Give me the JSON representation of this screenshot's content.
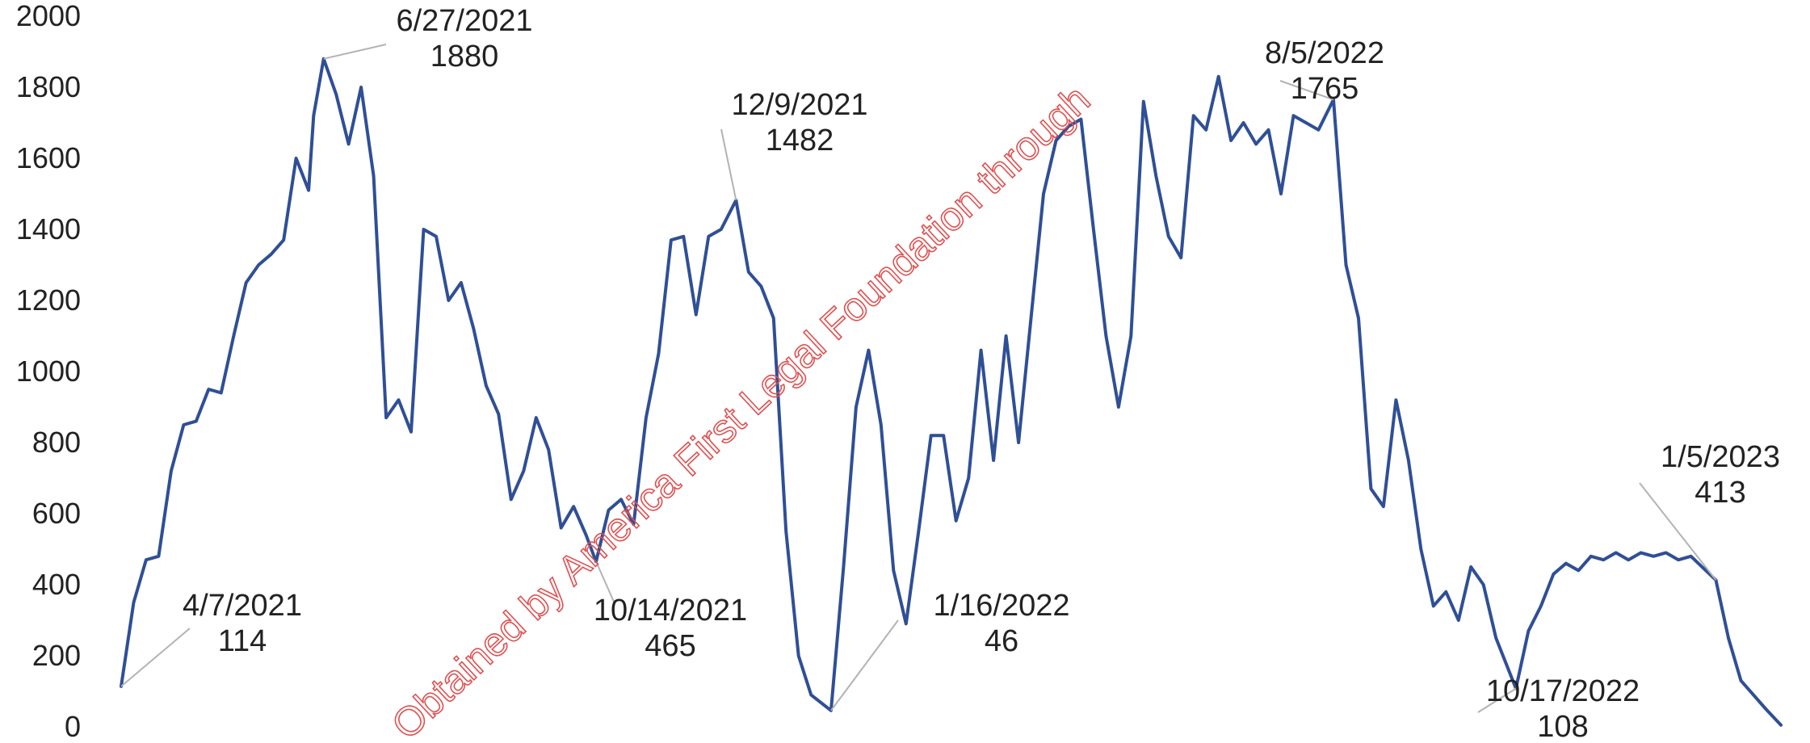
{
  "chart_data": {
    "type": "line",
    "title": "",
    "xlabel": "",
    "ylabel": "",
    "ylim": [
      0,
      2000
    ],
    "yticks": [
      0,
      200,
      400,
      600,
      800,
      1000,
      1200,
      1400,
      1600,
      1800,
      2000
    ],
    "grid": false,
    "legend": "none",
    "x_start": "4/7/2021",
    "x_end": "1/31/2023",
    "series": [
      {
        "color": "#2f4f96",
        "points": [
          [
            "4/7/2021",
            114
          ],
          [
            "4/12/2021",
            350
          ],
          [
            "4/17/2021",
            470
          ],
          [
            "4/22/2021",
            480
          ],
          [
            "4/27/2021",
            720
          ],
          [
            "5/2/2021",
            850
          ],
          [
            "5/7/2021",
            860
          ],
          [
            "5/12/2021",
            950
          ],
          [
            "5/17/2021",
            940
          ],
          [
            "5/22/2021",
            1100
          ],
          [
            "5/27/2021",
            1250
          ],
          [
            "6/1/2021",
            1300
          ],
          [
            "6/6/2021",
            1330
          ],
          [
            "6/11/2021",
            1370
          ],
          [
            "6/16/2021",
            1600
          ],
          [
            "6/21/2021",
            1510
          ],
          [
            "6/23/2021",
            1720
          ],
          [
            "6/27/2021",
            1880
          ],
          [
            "7/2/2021",
            1780
          ],
          [
            "7/7/2021",
            1640
          ],
          [
            "7/12/2021",
            1800
          ],
          [
            "7/17/2021",
            1550
          ],
          [
            "7/22/2021",
            870
          ],
          [
            "7/27/2021",
            920
          ],
          [
            "8/1/2021",
            830
          ],
          [
            "8/6/2021",
            1400
          ],
          [
            "8/11/2021",
            1380
          ],
          [
            "8/16/2021",
            1200
          ],
          [
            "8/21/2021",
            1250
          ],
          [
            "8/26/2021",
            1120
          ],
          [
            "8/31/2021",
            960
          ],
          [
            "9/5/2021",
            880
          ],
          [
            "9/10/2021",
            640
          ],
          [
            "9/15/2021",
            720
          ],
          [
            "9/20/2021",
            870
          ],
          [
            "9/25/2021",
            780
          ],
          [
            "9/30/2021",
            560
          ],
          [
            "10/5/2021",
            620
          ],
          [
            "10/10/2021",
            540
          ],
          [
            "10/14/2021",
            465
          ],
          [
            "10/19/2021",
            610
          ],
          [
            "10/24/2021",
            640
          ],
          [
            "10/29/2021",
            570
          ],
          [
            "11/3/2021",
            870
          ],
          [
            "11/8/2021",
            1050
          ],
          [
            "11/13/2021",
            1370
          ],
          [
            "11/18/2021",
            1380
          ],
          [
            "11/23/2021",
            1160
          ],
          [
            "11/28/2021",
            1380
          ],
          [
            "12/3/2021",
            1400
          ],
          [
            "12/9/2021",
            1482
          ],
          [
            "12/14/2021",
            1280
          ],
          [
            "12/19/2021",
            1240
          ],
          [
            "12/24/2021",
            1150
          ],
          [
            "12/29/2021",
            550
          ],
          [
            "1/3/2022",
            200
          ],
          [
            "1/8/2022",
            90
          ],
          [
            "1/16/2022",
            46
          ],
          [
            "1/21/2022",
            450
          ],
          [
            "1/26/2022",
            900
          ],
          [
            "1/31/2022",
            1060
          ],
          [
            "2/5/2022",
            850
          ],
          [
            "2/10/2022",
            440
          ],
          [
            "2/15/2022",
            290
          ],
          [
            "2/20/2022",
            550
          ],
          [
            "2/25/2022",
            820
          ],
          [
            "3/2/2022",
            820
          ],
          [
            "3/7/2022",
            580
          ],
          [
            "3/12/2022",
            700
          ],
          [
            "3/17/2022",
            1060
          ],
          [
            "3/22/2022",
            750
          ],
          [
            "3/27/2022",
            1100
          ],
          [
            "4/1/2022",
            800
          ],
          [
            "4/6/2022",
            1150
          ],
          [
            "4/11/2022",
            1500
          ],
          [
            "4/16/2022",
            1650
          ],
          [
            "4/21/2022",
            1690
          ],
          [
            "4/26/2022",
            1710
          ],
          [
            "5/1/2022",
            1400
          ],
          [
            "5/6/2022",
            1100
          ],
          [
            "5/11/2022",
            900
          ],
          [
            "5/16/2022",
            1100
          ],
          [
            "5/21/2022",
            1760
          ],
          [
            "5/26/2022",
            1550
          ],
          [
            "5/31/2022",
            1380
          ],
          [
            "6/5/2022",
            1320
          ],
          [
            "6/10/2022",
            1720
          ],
          [
            "6/15/2022",
            1680
          ],
          [
            "6/20/2022",
            1830
          ],
          [
            "6/25/2022",
            1650
          ],
          [
            "6/30/2022",
            1700
          ],
          [
            "7/5/2022",
            1640
          ],
          [
            "7/10/2022",
            1680
          ],
          [
            "7/15/2022",
            1500
          ],
          [
            "7/20/2022",
            1720
          ],
          [
            "7/25/2022",
            1700
          ],
          [
            "7/30/2022",
            1680
          ],
          [
            "8/5/2022",
            1765
          ],
          [
            "8/10/2022",
            1300
          ],
          [
            "8/15/2022",
            1150
          ],
          [
            "8/20/2022",
            670
          ],
          [
            "8/25/2022",
            620
          ],
          [
            "8/30/2022",
            920
          ],
          [
            "9/4/2022",
            750
          ],
          [
            "9/9/2022",
            500
          ],
          [
            "9/14/2022",
            340
          ],
          [
            "9/19/2022",
            380
          ],
          [
            "9/24/2022",
            300
          ],
          [
            "9/29/2022",
            450
          ],
          [
            "10/4/2022",
            400
          ],
          [
            "10/9/2022",
            250
          ],
          [
            "10/17/2022",
            108
          ],
          [
            "10/22/2022",
            270
          ],
          [
            "10/27/2022",
            340
          ],
          [
            "11/1/2022",
            430
          ],
          [
            "11/6/2022",
            460
          ],
          [
            "11/11/2022",
            440
          ],
          [
            "11/16/2022",
            480
          ],
          [
            "11/21/2022",
            470
          ],
          [
            "11/26/2022",
            490
          ],
          [
            "12/1/2022",
            470
          ],
          [
            "12/6/2022",
            490
          ],
          [
            "12/11/2022",
            480
          ],
          [
            "12/16/2022",
            490
          ],
          [
            "12/21/2022",
            470
          ],
          [
            "12/26/2022",
            480
          ],
          [
            "1/5/2023",
            413
          ],
          [
            "1/10/2023",
            250
          ],
          [
            "1/15/2023",
            130
          ],
          [
            "1/20/2023",
            90
          ],
          [
            "1/25/2023",
            50
          ],
          [
            "1/31/2023",
            5
          ]
        ]
      }
    ],
    "annotations": [
      {
        "date": "4/7/2021",
        "value": "114"
      },
      {
        "date": "6/27/2021",
        "value": "1880"
      },
      {
        "date": "10/14/2021",
        "value": "465"
      },
      {
        "date": "12/9/2021",
        "value": "1482"
      },
      {
        "date": "1/16/2022",
        "value": "46"
      },
      {
        "date": "8/5/2022",
        "value": "1765"
      },
      {
        "date": "10/17/2022",
        "value": "108"
      },
      {
        "date": "1/5/2023",
        "value": "413"
      }
    ]
  },
  "watermark": {
    "text": "Obtained by America First Legal Foundation through",
    "color": "#e05050"
  }
}
